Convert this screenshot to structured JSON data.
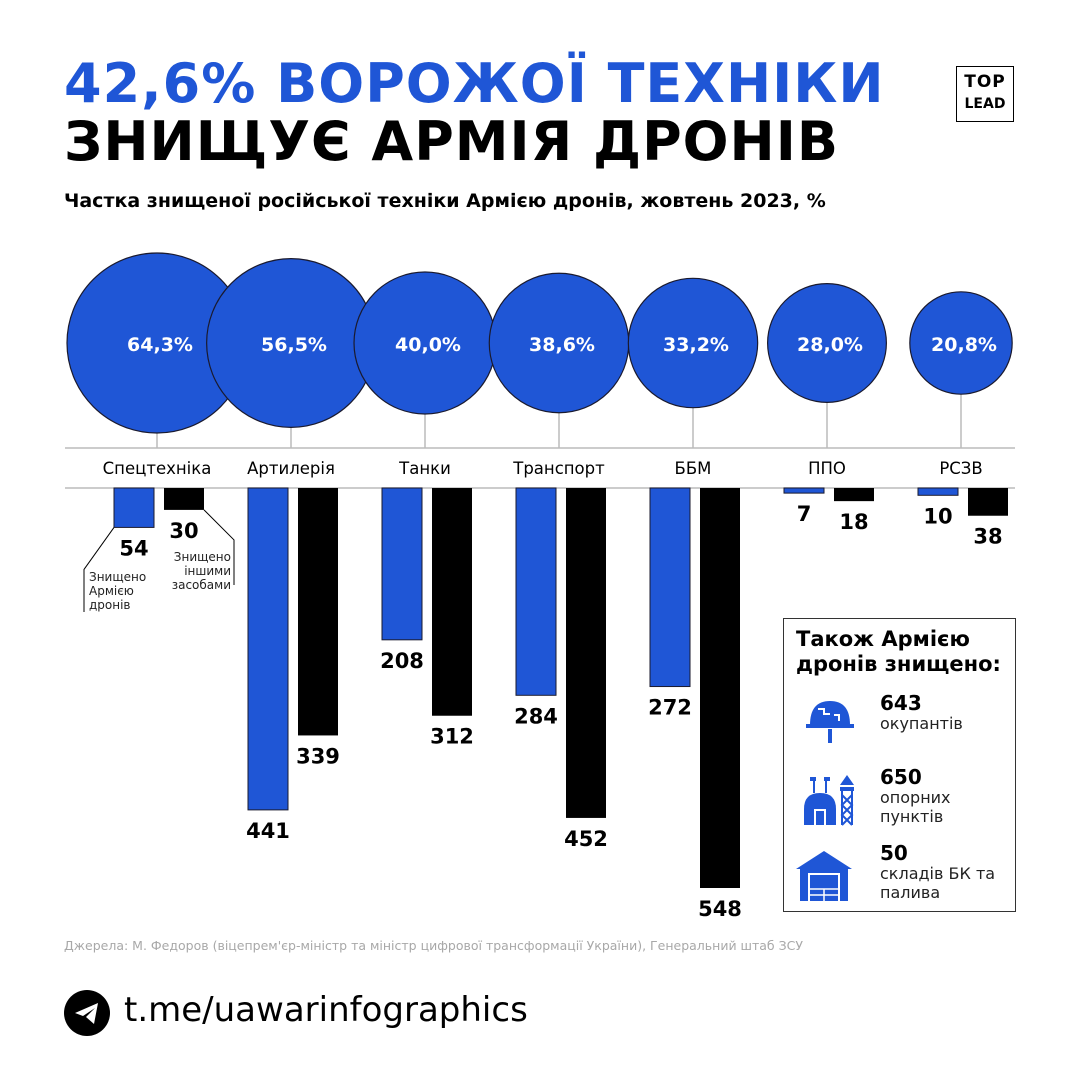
{
  "title_line1": "42,6% ВОРОЖОЇ ТЕХНІКИ",
  "title_line2": "ЗНИЩУЄ АРМІЯ ДРОНІВ",
  "logo": {
    "top": "TOP",
    "bottom": "LEAD"
  },
  "colors": {
    "blue": "#1f56d6",
    "black": "#000000"
  },
  "chart_data": {
    "type": "bar",
    "title": "Частка знищеної російської техніки Армією дронів, жовтень 2023, %",
    "categories": [
      "Спецтехніка",
      "Артилерія",
      "Танки",
      "Транспорт",
      "ББМ",
      "ППО",
      "РСЗВ"
    ],
    "share_labels": [
      "64,3%",
      "56,5%",
      "40,0%",
      "38,6%",
      "33,2%",
      "28,0%",
      "20,8%"
    ],
    "share_percent": [
      64.3,
      56.5,
      40.0,
      38.6,
      33.2,
      28.0,
      20.8
    ],
    "series": [
      {
        "name": "Знищено Армією дронів",
        "values": [
          54,
          441,
          208,
          284,
          272,
          7,
          10
        ]
      },
      {
        "name": "Знищено іншими засобами",
        "values": [
          30,
          339,
          312,
          452,
          548,
          18,
          38
        ]
      }
    ],
    "legend_placement": "under-first-category"
  },
  "box": {
    "title": "Також Армією дронів знищено:",
    "items": [
      {
        "icon": "helmet-icon",
        "value": "643",
        "label": "окупантів"
      },
      {
        "icon": "stronghold-icon",
        "value": "650",
        "label": "опорних пунктів"
      },
      {
        "icon": "warehouse-icon",
        "value": "50",
        "label": "складів БК та палива"
      }
    ]
  },
  "source": "Джерела: М. Федоров (віцепрем'єр-міністр та міністр цифрової трансформації України), Генеральний штаб ЗСУ",
  "footer": {
    "icon": "telegram-icon",
    "url": "t.me/uawarinfographics"
  }
}
